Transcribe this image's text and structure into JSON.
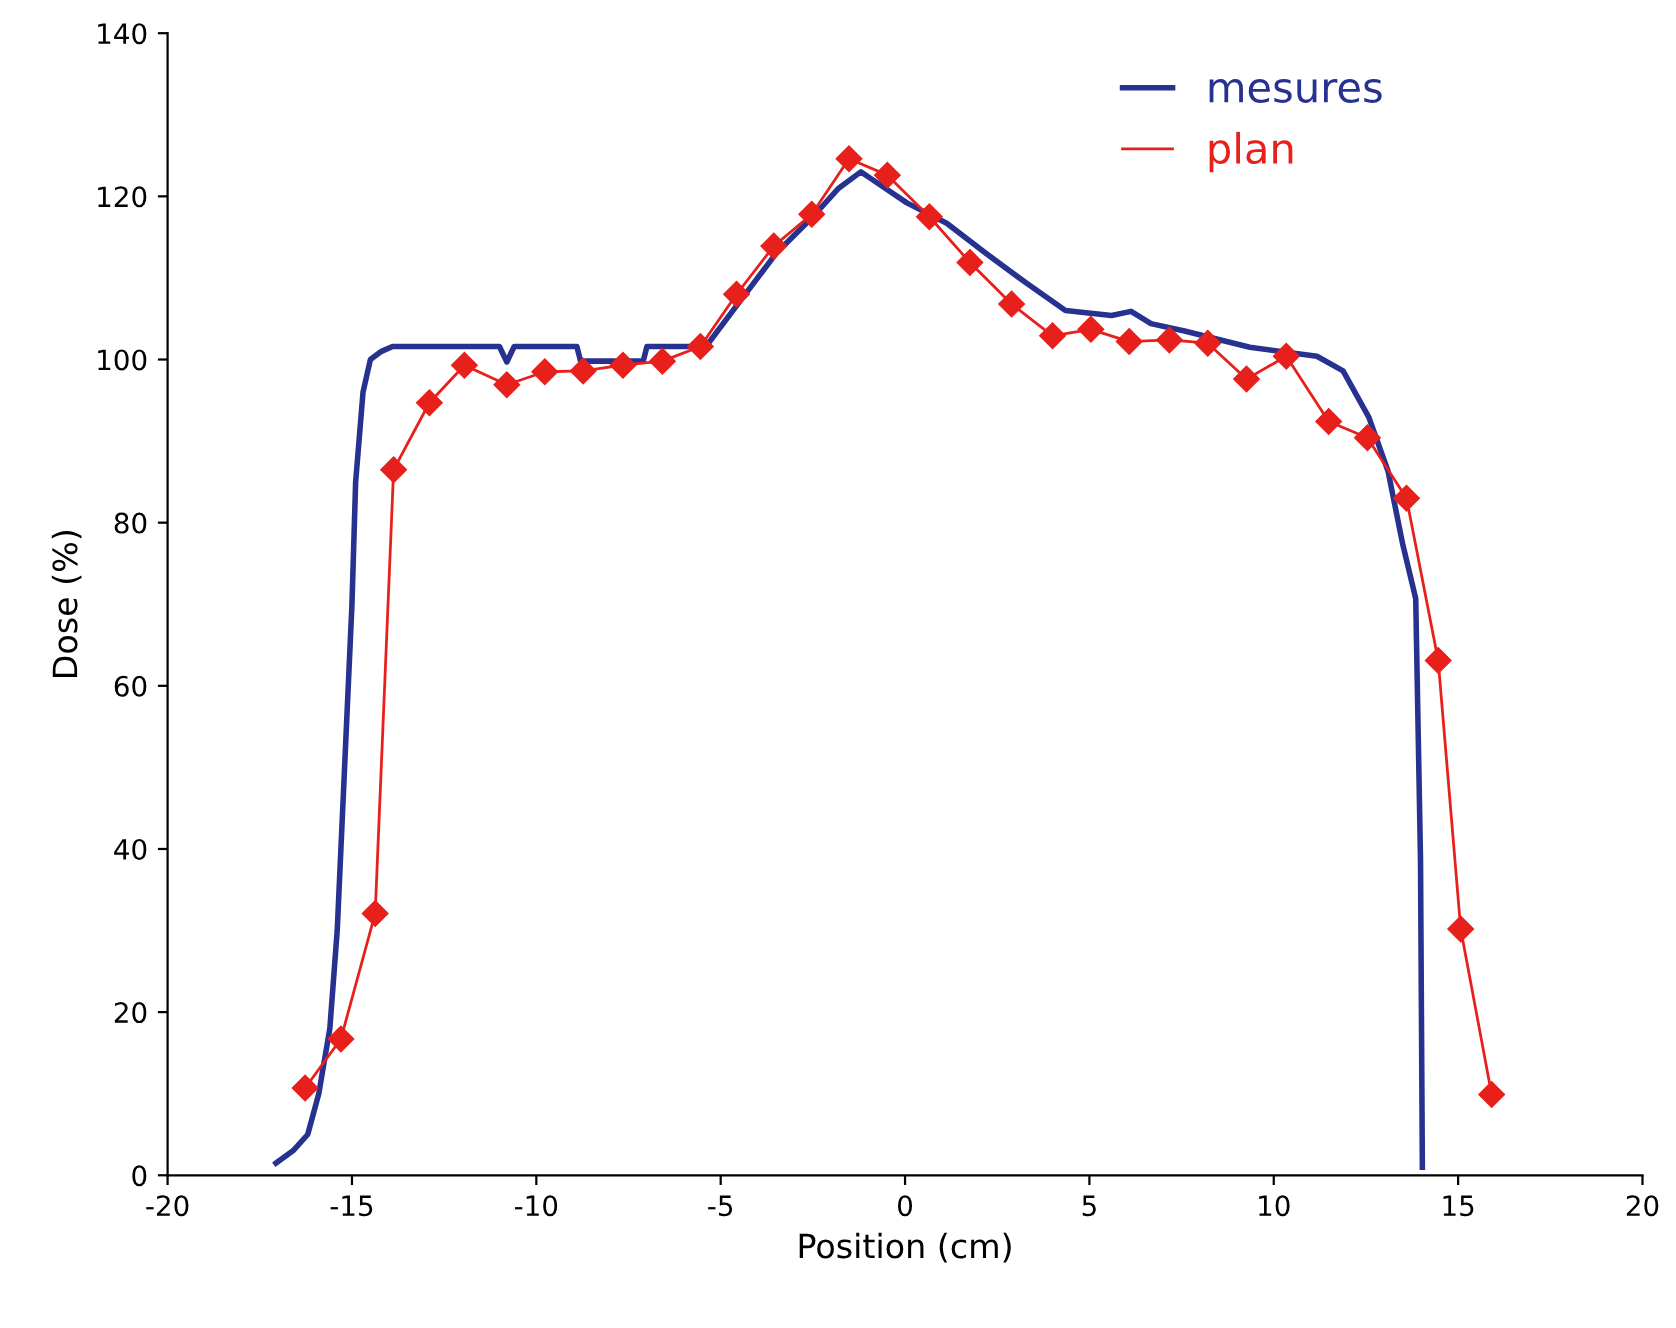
{
  "chart_data": {
    "type": "line",
    "xlabel": "Position (cm)",
    "ylabel": "Dose (%)",
    "xlim": [
      -20,
      20
    ],
    "xticks": [
      -20,
      -15,
      -10,
      -5,
      0,
      5,
      10,
      15,
      20
    ],
    "ylim": [
      0,
      140
    ],
    "yticks": [
      0,
      20,
      40,
      60,
      80,
      100,
      120,
      140
    ],
    "grid": false,
    "legend": "top right",
    "series": [
      {
        "name": "mesures",
        "color": "#27318f",
        "marker": "none",
        "line_style": "solid",
        "x": [
          -17.06,
          -16.6,
          -16.2,
          -15.9,
          -15.6,
          -15.4,
          -15.2,
          -15.0,
          -14.9,
          -14.7,
          -14.5,
          -14.2,
          -13.9,
          -11.0,
          -10.8,
          -10.6,
          -8.9,
          -8.8,
          -7.1,
          -7.0,
          -5.4,
          -4.5,
          -3.5,
          -2.5,
          -1.8,
          -1.2,
          -1.0,
          0.05,
          1.13,
          2.2,
          3.28,
          4.35,
          5.6,
          6.13,
          6.67,
          7.58,
          9.35,
          11.17,
          11.88,
          12.58,
          13.1,
          13.5,
          13.85,
          13.98,
          14.03
        ],
        "values": [
          1.5,
          3,
          5,
          10,
          18,
          30,
          50,
          70,
          85,
          96,
          100,
          101,
          101.6,
          101.6,
          99.7,
          101.6,
          101.6,
          99.8,
          99.8,
          101.6,
          101.6,
          107,
          113,
          117.5,
          121,
          123,
          122.4,
          119.2,
          116.7,
          113,
          109.4,
          106,
          105.4,
          105.9,
          104.4,
          103.5,
          101.5,
          100.4,
          98.6,
          92.9,
          86.3,
          77.3,
          70.7,
          38.7,
          1
        ]
      },
      {
        "name": "plan",
        "color": "#e8201c",
        "marker": "diamond",
        "line_style": "solid",
        "x": [
          -16.27,
          -15.3,
          -14.37,
          -13.87,
          -12.9,
          -11.95,
          -10.8,
          -9.77,
          -8.73,
          -7.65,
          -6.58,
          -5.55,
          -4.57,
          -3.56,
          -2.53,
          -1.52,
          -0.48,
          0.66,
          1.76,
          2.89,
          4.0,
          5.04,
          6.08,
          7.17,
          8.21,
          9.26,
          10.34,
          11.49,
          12.54,
          13.6,
          14.46,
          15.07,
          15.91
        ],
        "values": [
          10.7,
          16.7,
          32.1,
          86.5,
          94.7,
          99.3,
          96.9,
          98.5,
          98.6,
          99.3,
          99.8,
          101.6,
          108,
          113.9,
          117.8,
          124.6,
          122.6,
          117.5,
          111.9,
          106.8,
          102.9,
          103.7,
          102.2,
          102.4,
          102.0,
          97.6,
          100.4,
          92.4,
          90.4,
          83.0,
          63.1,
          30.2,
          9.9
        ]
      }
    ]
  }
}
